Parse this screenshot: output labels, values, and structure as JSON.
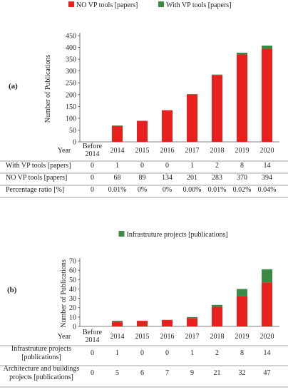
{
  "chart_data": [
    {
      "type": "bar",
      "panel_label": "(a)",
      "categories": [
        "Before 2014",
        "2014",
        "2015",
        "2016",
        "2017",
        "2018",
        "2019",
        "2020"
      ],
      "series": [
        {
          "name": "NO VP tools [papers]",
          "values": [
            0,
            68,
            89,
            134,
            201,
            283,
            370,
            394
          ],
          "color": "#e8211f"
        },
        {
          "name": "With VP tools [papers]",
          "values": [
            0,
            1,
            0,
            0,
            1,
            2,
            8,
            14
          ],
          "color": "#3a8a43"
        }
      ],
      "ylabel": "Number of Publications",
      "xlabel": "Year",
      "ylim": [
        0,
        450
      ],
      "yticks": [
        "0",
        "50",
        "100",
        "150",
        "200",
        "250",
        "300",
        "350",
        "400",
        "450"
      ],
      "legend_position": "top",
      "table": {
        "header": "Year",
        "rows": [
          {
            "label": "With VP tools [papers]",
            "values": [
              "0",
              "1",
              "0",
              "0",
              "1",
              "2",
              "8",
              "14"
            ]
          },
          {
            "label": "NO VP tools [papers]",
            "values": [
              "0",
              "68",
              "89",
              "134",
              "201",
              "283",
              "370",
              "394"
            ]
          },
          {
            "label": "Percentage ratio [%]",
            "values": [
              "0",
              "0.01%",
              "0%",
              "0%",
              "0.00%",
              "0.01%",
              "0.02%",
              "0.04%"
            ]
          }
        ]
      }
    },
    {
      "type": "bar",
      "panel_label": "(b)",
      "categories": [
        "Before 2014",
        "2014",
        "2015",
        "2016",
        "2017",
        "2018",
        "2019",
        "2020"
      ],
      "series": [
        {
          "name": "Architecture and buildings projects [publications]",
          "values": [
            0,
            5,
            6,
            7,
            9,
            21,
            32,
            47
          ],
          "color": "#e8211f"
        },
        {
          "name": "Infrastruture projects [publications]",
          "values": [
            0,
            1,
            0,
            0,
            1,
            2,
            8,
            14
          ],
          "color": "#3a8a43"
        }
      ],
      "legend_entries": [
        "Infrastruture projects [publications]"
      ],
      "ylabel": "Number of Publications",
      "xlabel": "Year",
      "ylim": [
        0,
        70
      ],
      "yticks": [
        "0",
        "10",
        "20",
        "30",
        "40",
        "50",
        "60",
        "70"
      ],
      "legend_position": "top",
      "table": {
        "header": "Year",
        "rows": [
          {
            "label": "Infrastruture projects [publications]",
            "values": [
              "0",
              "1",
              "0",
              "0",
              "1",
              "2",
              "8",
              "14"
            ]
          },
          {
            "label": "Architecture and buildings projects [publications]",
            "values": [
              "0",
              "5",
              "6",
              "7",
              "9",
              "21",
              "32",
              "47"
            ]
          }
        ]
      }
    }
  ]
}
